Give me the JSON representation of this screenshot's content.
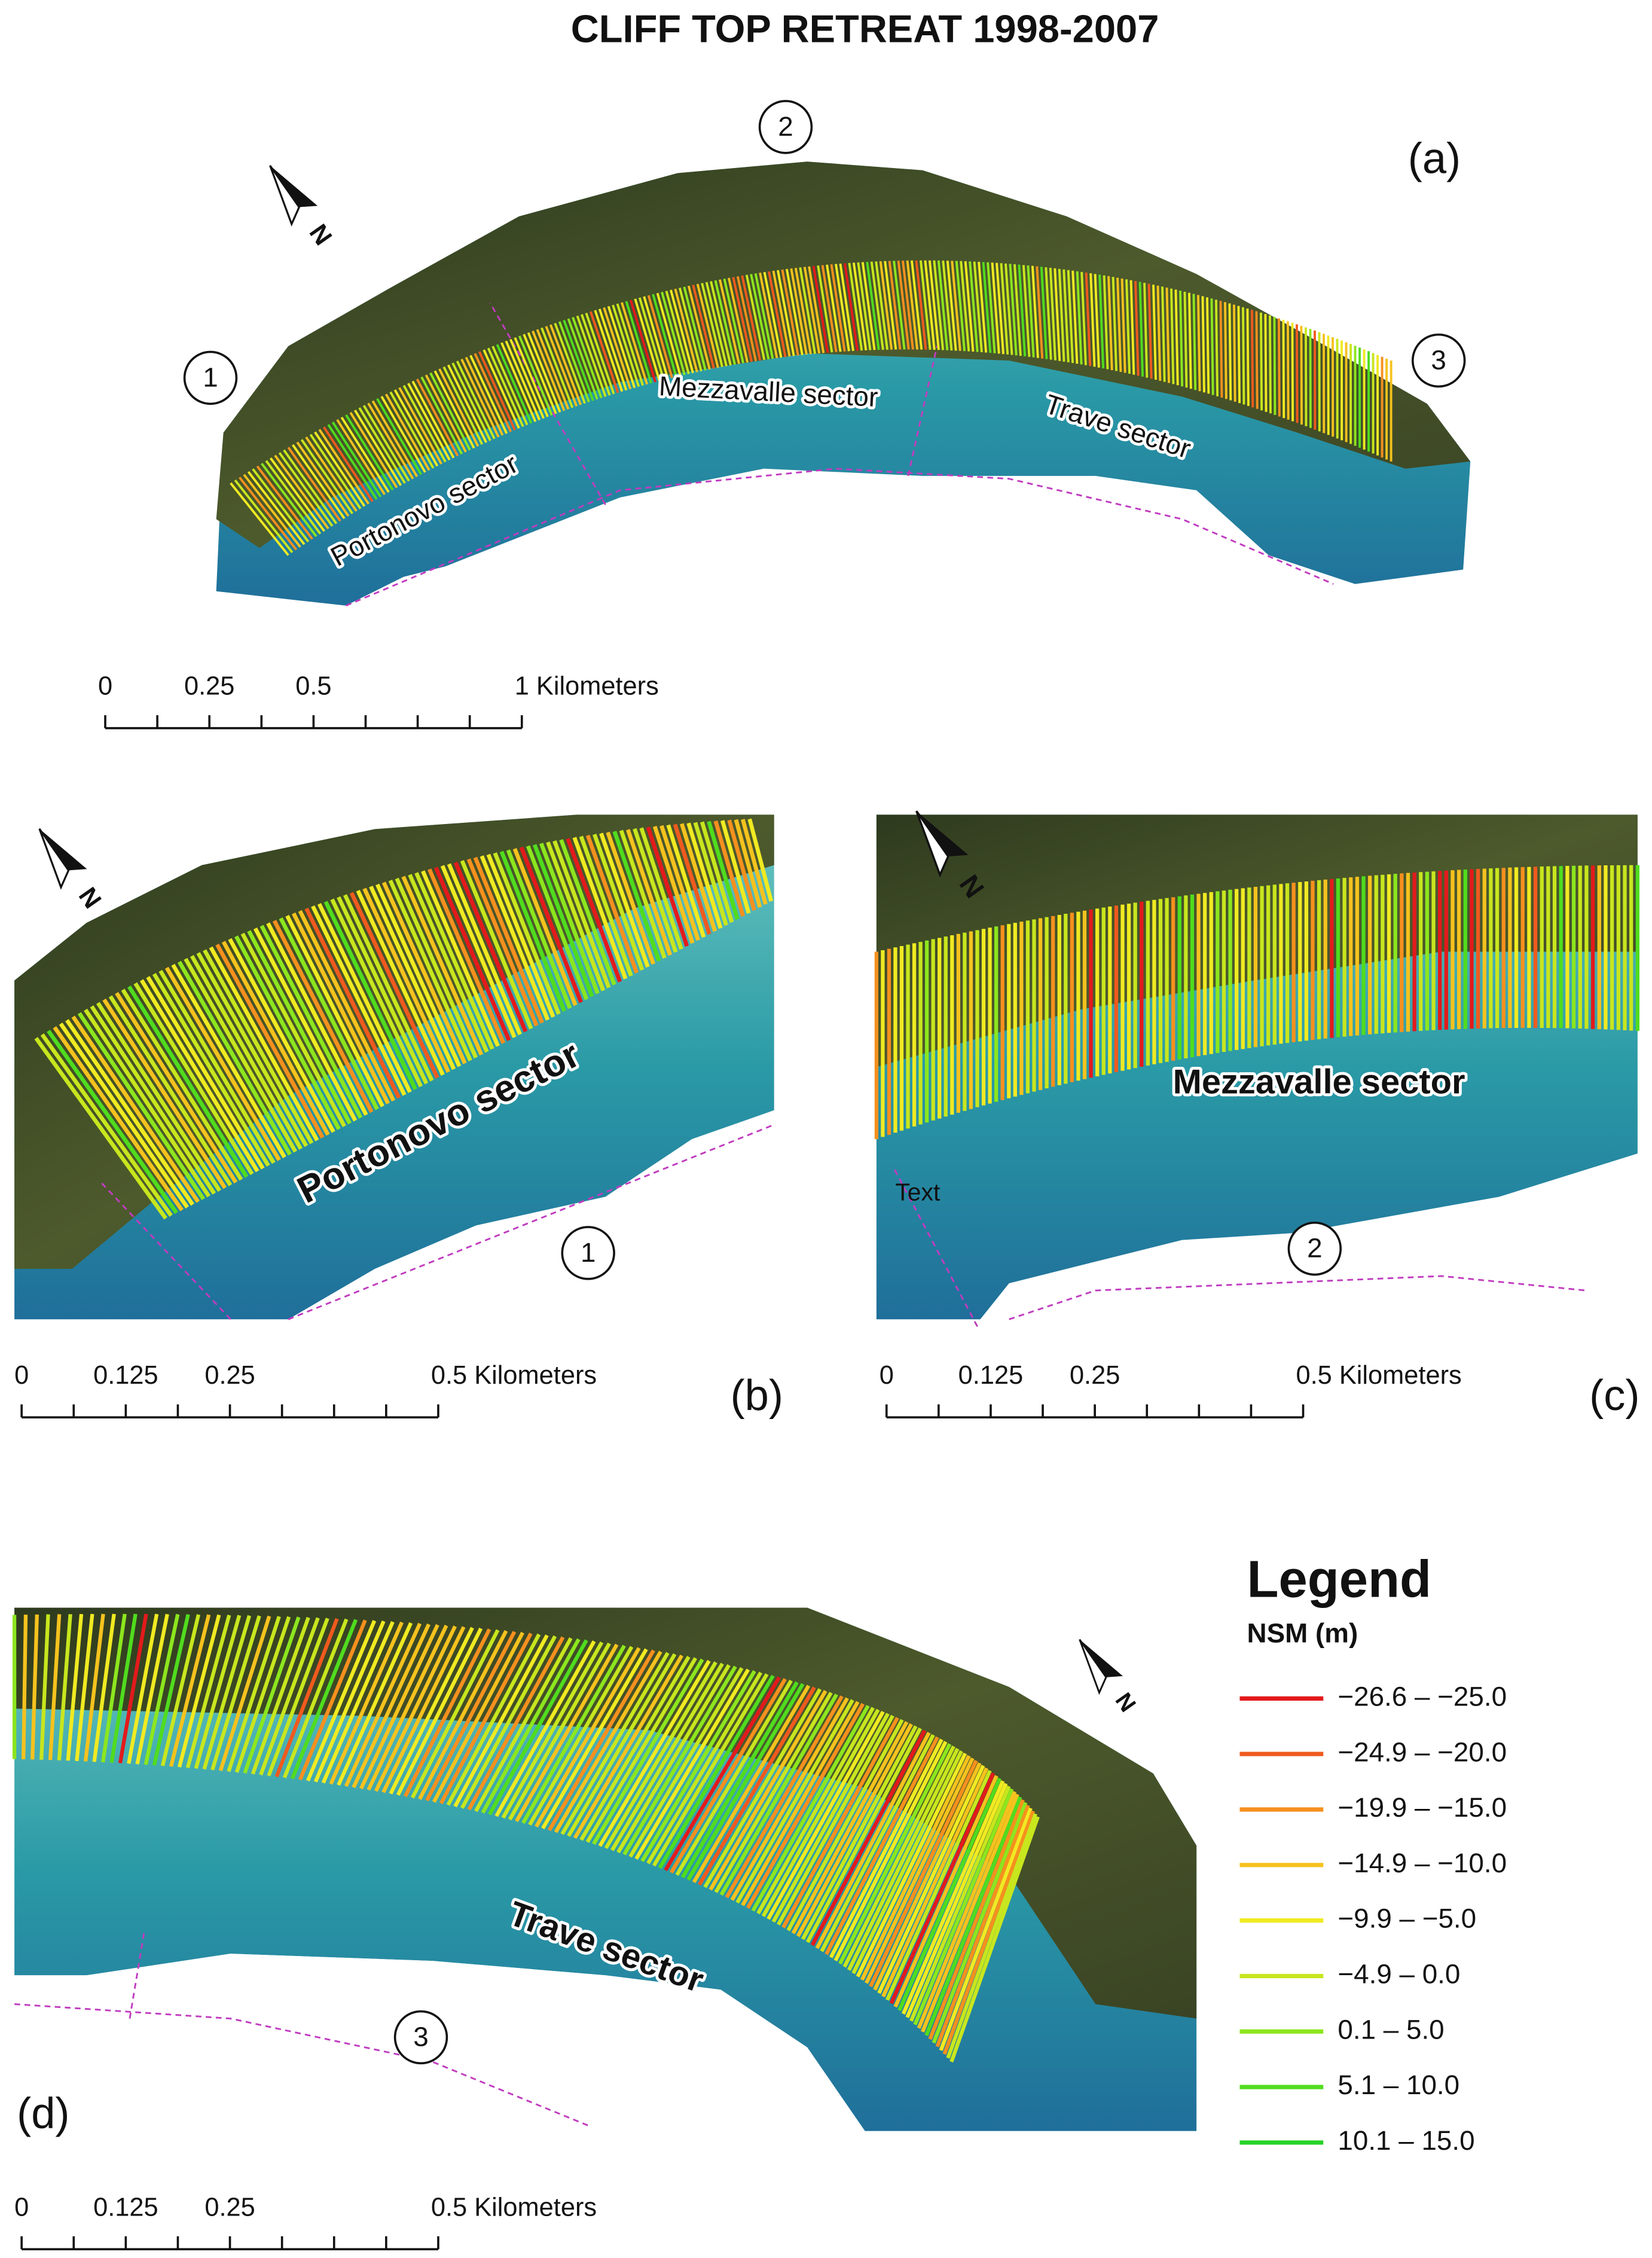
{
  "title": "CLIFF TOP RETREAT 1998-2007",
  "panels": [
    {
      "label": "(a)",
      "sectors": [
        "Portonovo sector",
        "Mezzavalle sector",
        "Trave sector"
      ],
      "markers": [
        "1",
        "2",
        "3"
      ],
      "scale_bar": [
        "0",
        "0.25",
        "0.5",
        "1 Kilometers"
      ]
    },
    {
      "label": "(b)",
      "sectors": [
        "Portonovo sector"
      ],
      "markers": [
        "1"
      ],
      "scale_bar": [
        "0",
        "0.125",
        "0.25",
        "0.5 Kilometers"
      ]
    },
    {
      "label": "(c)",
      "sectors": [
        "Mezzavalle sector"
      ],
      "markers": [
        "2"
      ],
      "annotation": "Text",
      "scale_bar": [
        "0",
        "0.125",
        "0.25",
        "0.5 Kilometers"
      ]
    },
    {
      "label": "(d)",
      "sectors": [
        "Trave sector"
      ],
      "markers": [
        "3"
      ],
      "scale_bar": [
        "0",
        "0.125",
        "0.25",
        "0.5 Kilometers"
      ]
    }
  ],
  "north_label": "N",
  "legend": {
    "title": "Legend",
    "subtitle": "NSM (m)",
    "items": [
      {
        "label": "−26.6 – −25.0",
        "color": "#e31a1c"
      },
      {
        "label": "−24.9 – −20.0",
        "color": "#f05a1e"
      },
      {
        "label": "−19.9 – −15.0",
        "color": "#f5901e"
      },
      {
        "label": "−14.9 – −10.0",
        "color": "#f5c21e"
      },
      {
        "label": "−9.9 – −5.0",
        "color": "#f0ea22"
      },
      {
        "label": "−4.9 – 0.0",
        "color": "#c8e61e"
      },
      {
        "label": "0.1 – 5.0",
        "color": "#8ce61e"
      },
      {
        "label": "5.1 – 10.0",
        "color": "#50dc1e"
      },
      {
        "label": "10.1 – 15.0",
        "color": "#28d228"
      }
    ]
  }
}
